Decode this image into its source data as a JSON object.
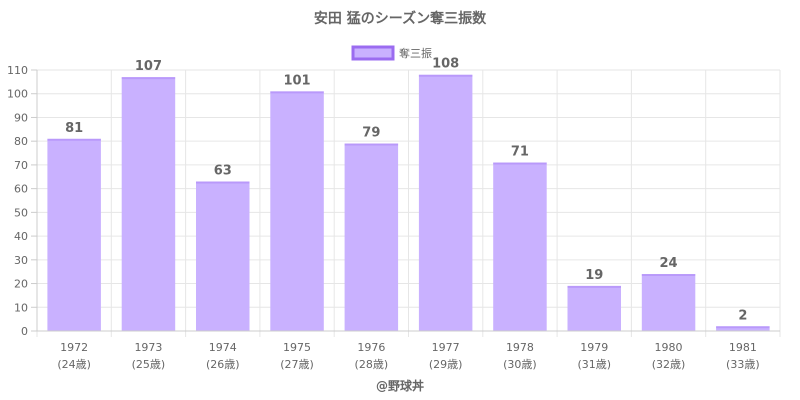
{
  "chart_data": {
    "type": "bar",
    "title": "安田 猛のシーズン奪三振数",
    "categories": [
      "1972",
      "1973",
      "1974",
      "1975",
      "1976",
      "1977",
      "1978",
      "1979",
      "1980",
      "1981"
    ],
    "sublabels": [
      "(24歳)",
      "(25歳)",
      "(26歳)",
      "(27歳)",
      "(28歳)",
      "(29歳)",
      "(30歳)",
      "(31歳)",
      "(32歳)",
      "(33歳)"
    ],
    "series": [
      {
        "name": "奪三振",
        "values": [
          81,
          107,
          63,
          101,
          79,
          108,
          71,
          19,
          24,
          2
        ],
        "color": "#c9b1ff",
        "border_color": "#9b6cf0"
      }
    ],
    "ylim": [
      0,
      110
    ],
    "yticks": [
      0,
      10,
      20,
      30,
      40,
      50,
      60,
      70,
      80,
      90,
      100,
      110
    ],
    "grid": true,
    "legend_position": "top-center",
    "credit": "@野球丼"
  }
}
